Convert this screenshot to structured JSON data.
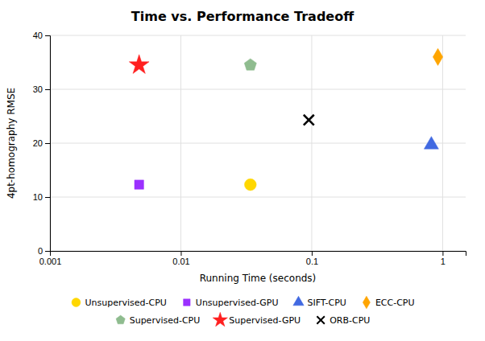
{
  "chart_data": {
    "type": "scatter",
    "title": "Time vs. Performance Tradeoff",
    "xlabel": "Running Time (seconds)",
    "ylabel": "4pt-homography RMSE",
    "log": "x",
    "xlim": [
      0.001,
      1.5
    ],
    "xticks": [
      0.001,
      0.01,
      0.1,
      1
    ],
    "ylim": [
      0,
      40
    ],
    "yticks": [
      0,
      10,
      20,
      30,
      40
    ],
    "grid": true,
    "legend": "bottom",
    "series": [
      {
        "name": "Unsupervised-CPU",
        "color": "#FFD700",
        "marker": "circle",
        "x": [
          0.034
        ],
        "values": [
          12.3
        ]
      },
      {
        "name": "Unsupervised-GPU",
        "color": "#9B30FF",
        "marker": "square",
        "x": [
          0.0048
        ],
        "values": [
          12.3
        ]
      },
      {
        "name": "SIFT-CPU",
        "color": "#4169E1",
        "marker": "triangle",
        "x": [
          0.82
        ],
        "values": [
          19.7
        ]
      },
      {
        "name": "ECC-CPU",
        "color": "#FFA500",
        "marker": "diamond",
        "x": [
          0.92
        ],
        "values": [
          36.0
        ]
      },
      {
        "name": "Supervised-CPU",
        "color": "#8FBC8F",
        "marker": "pentagon",
        "x": [
          0.034
        ],
        "values": [
          34.5
        ]
      },
      {
        "name": "Supervised-GPU",
        "color": "#FF2020",
        "marker": "star",
        "x": [
          0.0048
        ],
        "values": [
          34.5
        ]
      },
      {
        "name": "ORB-CPU",
        "color": "#000000",
        "marker": "x",
        "x": [
          0.095
        ],
        "values": [
          24.3
        ]
      }
    ]
  }
}
